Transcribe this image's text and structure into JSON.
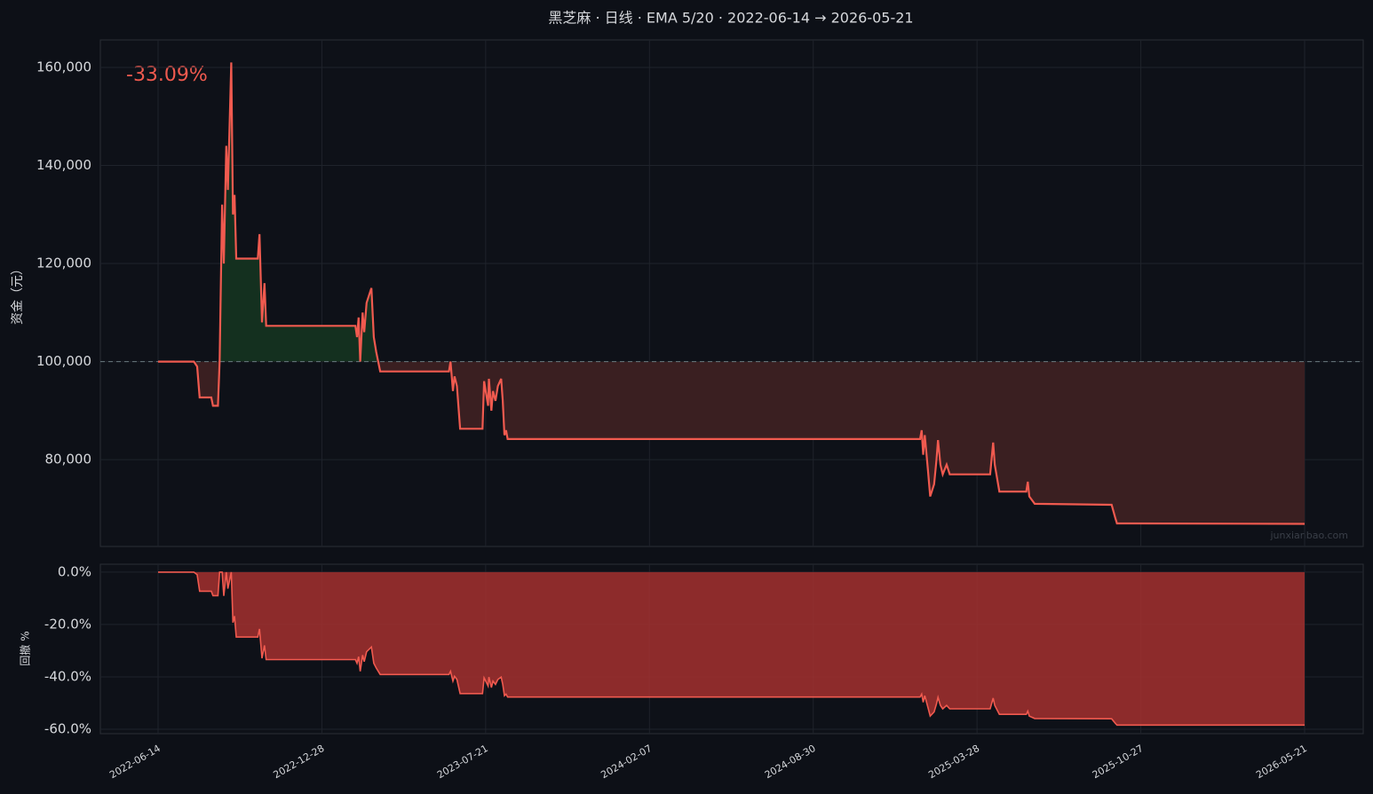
{
  "chart_data": [
    {
      "type": "line",
      "title": "黑芝麻 · 日线 · EMA 5/20 · 2022-06-14 → 2026-05-21",
      "ylabel": "资金（元）",
      "annotation": "-33.09%",
      "watermark": "junxianbao.com",
      "x": [
        "2022-06-14",
        "2022-07-27",
        "2022-07-31",
        "2022-08-03",
        "2022-08-17",
        "2022-08-19",
        "2022-08-25",
        "2022-08-27",
        "2022-08-30",
        "2022-09-01",
        "2022-09-04",
        "2022-09-06",
        "2022-09-10",
        "2022-09-12",
        "2022-09-14",
        "2022-09-16",
        "2022-10-12",
        "2022-10-14",
        "2022-10-17",
        "2022-10-20",
        "2022-10-22",
        "2023-02-08",
        "2023-02-10",
        "2023-02-12",
        "2023-02-14",
        "2023-02-17",
        "2023-02-19",
        "2023-02-22",
        "2023-02-28",
        "2023-03-03",
        "2023-03-06",
        "2023-03-11",
        "2023-06-05",
        "2023-06-07",
        "2023-06-10",
        "2023-06-12",
        "2023-06-15",
        "2023-06-19",
        "2023-07-17",
        "2023-07-19",
        "2023-07-22",
        "2023-07-24",
        "2023-07-25",
        "2023-07-28",
        "2023-07-30",
        "2023-08-02",
        "2023-08-05",
        "2023-08-09",
        "2023-08-11",
        "2023-08-13",
        "2023-08-15",
        "2023-08-17",
        "2025-01-14",
        "2025-01-16",
        "2025-01-18",
        "2025-01-20",
        "2025-01-24",
        "2025-01-27",
        "2025-02-01",
        "2025-02-04",
        "2025-02-06",
        "2025-02-09",
        "2025-02-12",
        "2025-02-17",
        "2025-02-21",
        "2025-04-14",
        "2025-04-18",
        "2025-04-20",
        "2025-04-26",
        "2025-05-31",
        "2025-06-02",
        "2025-06-04",
        "2025-06-11",
        "2025-09-19",
        "2025-09-24",
        "2025-09-26",
        "2026-05-21"
      ],
      "values": [
        100000,
        100000,
        99000,
        92700,
        92700,
        91000,
        91000,
        100000,
        132000,
        120000,
        144000,
        135000,
        161000,
        130000,
        134000,
        121000,
        121000,
        126000,
        108000,
        116000,
        107300,
        107300,
        105000,
        109000,
        100000,
        110000,
        106000,
        112000,
        115000,
        105000,
        102000,
        98000,
        98000,
        100000,
        94000,
        97000,
        95000,
        86300,
        86300,
        96000,
        93000,
        91000,
        96500,
        90000,
        94000,
        92000,
        95000,
        96500,
        92000,
        85000,
        86000,
        84200,
        84200,
        86000,
        81000,
        85000,
        78000,
        72500,
        75000,
        80000,
        84000,
        79000,
        77000,
        79000,
        77000,
        77000,
        83500,
        79000,
        73500,
        73500,
        75500,
        72500,
        71000,
        70800,
        68000,
        67000,
        66910
      ],
      "color": "#f05a4f",
      "baseline": 100000,
      "above_color": "#14301f",
      "below_color": "#3a1f21",
      "ylim": [
        62300,
        165600
      ],
      "yticks": [
        {
          "value": 80000,
          "label": "80,000"
        },
        {
          "value": 100000,
          "label": "100,000"
        },
        {
          "value": 120000,
          "label": "120,000"
        },
        {
          "value": 140000,
          "label": "140,000"
        },
        {
          "value": 160000,
          "label": "160,000"
        }
      ],
      "xticks": [
        "2022-06-14",
        "2022-12-28",
        "2023-07-21",
        "2024-02-07",
        "2024-08-30",
        "2025-03-28",
        "2025-10-27",
        "2026-05-21"
      ],
      "grid": true
    },
    {
      "type": "area",
      "ylabel": "回撤 %",
      "x": [
        "2022-06-14",
        "2022-07-27",
        "2022-07-31",
        "2022-08-03",
        "2022-08-17",
        "2022-08-19",
        "2022-08-25",
        "2022-08-27",
        "2022-08-30",
        "2022-09-01",
        "2022-09-04",
        "2022-09-06",
        "2022-09-10",
        "2022-09-12",
        "2022-09-14",
        "2022-09-16",
        "2022-10-12",
        "2022-10-14",
        "2022-10-17",
        "2022-10-20",
        "2022-10-22",
        "2023-02-08",
        "2023-02-10",
        "2023-02-12",
        "2023-02-14",
        "2023-02-17",
        "2023-02-19",
        "2023-02-22",
        "2023-02-28",
        "2023-03-03",
        "2023-03-06",
        "2023-03-11",
        "2023-06-05",
        "2023-06-07",
        "2023-06-10",
        "2023-06-12",
        "2023-06-15",
        "2023-06-19",
        "2023-07-17",
        "2023-07-19",
        "2023-07-22",
        "2023-07-24",
        "2023-07-25",
        "2023-07-28",
        "2023-07-30",
        "2023-08-02",
        "2023-08-05",
        "2023-08-09",
        "2023-08-11",
        "2023-08-13",
        "2023-08-15",
        "2023-08-17",
        "2025-01-14",
        "2025-01-16",
        "2025-01-18",
        "2025-01-20",
        "2025-01-24",
        "2025-01-27",
        "2025-02-01",
        "2025-02-04",
        "2025-02-06",
        "2025-02-09",
        "2025-02-12",
        "2025-02-17",
        "2025-02-21",
        "2025-04-14",
        "2025-04-18",
        "2025-04-20",
        "2025-04-26",
        "2025-05-31",
        "2025-06-02",
        "2025-06-04",
        "2025-06-11",
        "2025-09-19",
        "2025-09-24",
        "2025-09-26",
        "2026-05-21"
      ],
      "values": [
        0,
        0,
        -1,
        -7.3,
        -7.3,
        -9,
        -9,
        0,
        0,
        -9.1,
        0,
        -6.3,
        0,
        -19.3,
        -16.8,
        -24.8,
        -24.8,
        -21.7,
        -32.9,
        -28,
        -33.4,
        -33.4,
        -34.8,
        -32.3,
        -37.9,
        -31.7,
        -34.2,
        -30.4,
        -28.6,
        -34.8,
        -36.6,
        -39.1,
        -39.1,
        -37.9,
        -41.6,
        -39.8,
        -41,
        -46.4,
        -46.4,
        -40.4,
        -42.2,
        -43.5,
        -40.1,
        -44.1,
        -41.6,
        -42.9,
        -41,
        -40.1,
        -42.9,
        -47.2,
        -46.6,
        -47.7,
        -47.7,
        -46.6,
        -49.7,
        -47.2,
        -51.6,
        -55,
        -53.4,
        -50.3,
        -47.8,
        -50.9,
        -52.2,
        -50.9,
        -52.2,
        -52.2,
        -48.1,
        -50.9,
        -54.3,
        -54.3,
        -53.1,
        -55,
        -55.9,
        -56,
        -57.8,
        -58.4,
        -58.4
      ],
      "color": "#f05a4f",
      "fill": "#a3302f",
      "ylim": [
        -61.7,
        3
      ],
      "yticks": [
        {
          "value": 0,
          "label": "0.0%"
        },
        {
          "value": -20,
          "label": "-20.0%"
        },
        {
          "value": -40,
          "label": "-40.0%"
        },
        {
          "value": -60,
          "label": "-60.0%"
        }
      ],
      "xticks": [
        "2022-06-14",
        "2022-12-28",
        "2023-07-21",
        "2024-02-07",
        "2024-08-30",
        "2025-03-28",
        "2025-10-27",
        "2026-05-21"
      ],
      "grid": true
    }
  ]
}
